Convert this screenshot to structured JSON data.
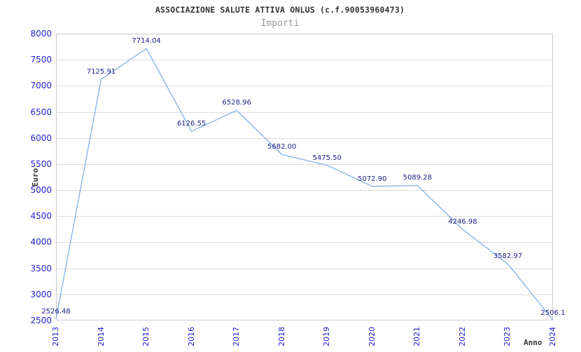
{
  "header": {
    "title": "ASSOCIAZIONE SALUTE ATTIVA ONLUS (c.f.90053960473)",
    "subtitle": "Importi"
  },
  "chart_data": {
    "type": "line",
    "title": "ASSOCIAZIONE SALUTE ATTIVA ONLUS (c.f.90053960473)",
    "subtitle": "Importi",
    "xlabel": "Anno",
    "ylabel": "Euro",
    "categories": [
      "2013",
      "2014",
      "2015",
      "2016",
      "2017",
      "2018",
      "2019",
      "2020",
      "2021",
      "2022",
      "2023",
      "2024"
    ],
    "values": [
      2526.48,
      7125.91,
      7714.04,
      6126.55,
      6528.96,
      5682.0,
      5475.5,
      5072.9,
      5089.28,
      4246.98,
      3582.97,
      2506.1
    ],
    "point_labels": [
      "2526.48",
      "7125.91",
      "7714.04",
      "6126.55",
      "6528.96",
      "5682.00",
      "5475.50",
      "5072.90",
      "5089.28",
      "4246.98",
      "3582.97",
      "2506.1"
    ],
    "ylim": [
      2500,
      8000
    ],
    "yticks": [
      8000,
      7500,
      7000,
      6500,
      6000,
      5500,
      5000,
      4500,
      4000,
      3500,
      3000,
      2500
    ],
    "grid": true,
    "legend_position": "none",
    "colors": {
      "line": "#82b1e8",
      "point_label": "#222288",
      "tick_label": "#2222cc",
      "band_even": "#ffffff",
      "band_odd": "#f2f2f2",
      "gridline": "#dcdcdc",
      "plot_border": "#cccccc",
      "title": "#333333",
      "subtitle": "#999999"
    }
  }
}
